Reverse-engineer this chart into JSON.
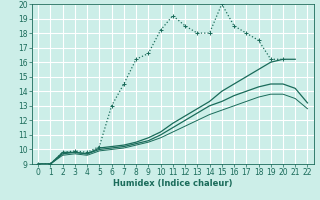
{
  "xlabel": "Humidex (Indice chaleur)",
  "xlim": [
    -0.5,
    22.5
  ],
  "ylim": [
    9,
    20
  ],
  "xticks": [
    0,
    1,
    2,
    3,
    4,
    5,
    6,
    7,
    8,
    9,
    10,
    11,
    12,
    13,
    14,
    15,
    16,
    17,
    18,
    19,
    20,
    21,
    22
  ],
  "yticks": [
    9,
    10,
    11,
    12,
    13,
    14,
    15,
    16,
    17,
    18,
    19,
    20
  ],
  "bg_color": "#cceee8",
  "grid_color": "#ffffff",
  "line_color": "#1a6b5a",
  "lines": [
    {
      "x": [
        0,
        1,
        2,
        3,
        4,
        5,
        6,
        7,
        8,
        9,
        10,
        11,
        12,
        13,
        14,
        15,
        16,
        17,
        18,
        19,
        20
      ],
      "y": [
        9,
        9,
        9.8,
        9.9,
        9.8,
        10.2,
        13.0,
        14.5,
        16.2,
        16.6,
        18.2,
        19.2,
        18.5,
        18.0,
        18.0,
        20.0,
        18.5,
        18.0,
        17.5,
        16.2,
        16.2
      ],
      "marker": "+",
      "linestyle": ":",
      "linewidth": 0.9,
      "markersize": 3.0
    },
    {
      "x": [
        0,
        1,
        2,
        3,
        4,
        5,
        6,
        7,
        8,
        9,
        10,
        11,
        12,
        13,
        14,
        15,
        16,
        17,
        18,
        19,
        20,
        21
      ],
      "y": [
        9,
        9,
        9.8,
        9.8,
        9.7,
        10.1,
        10.2,
        10.3,
        10.5,
        10.8,
        11.2,
        11.8,
        12.3,
        12.8,
        13.3,
        14.0,
        14.5,
        15.0,
        15.5,
        16.0,
        16.2,
        16.2
      ],
      "marker": null,
      "linestyle": "-",
      "linewidth": 0.9,
      "markersize": 0
    },
    {
      "x": [
        0,
        1,
        2,
        3,
        4,
        5,
        6,
        7,
        8,
        9,
        10,
        11,
        12,
        13,
        14,
        15,
        16,
        17,
        18,
        19,
        20,
        21,
        22
      ],
      "y": [
        9,
        9,
        9.7,
        9.8,
        9.7,
        10.0,
        10.1,
        10.2,
        10.4,
        10.6,
        11.0,
        11.5,
        12.0,
        12.5,
        13.0,
        13.3,
        13.7,
        14.0,
        14.3,
        14.5,
        14.5,
        14.2,
        13.2
      ],
      "marker": null,
      "linestyle": "-",
      "linewidth": 0.9,
      "markersize": 0
    },
    {
      "x": [
        0,
        1,
        2,
        3,
        4,
        5,
        6,
        7,
        8,
        9,
        10,
        11,
        12,
        13,
        14,
        15,
        16,
        17,
        18,
        19,
        20,
        21,
        22
      ],
      "y": [
        9,
        9,
        9.6,
        9.7,
        9.6,
        9.9,
        10.0,
        10.1,
        10.3,
        10.5,
        10.8,
        11.2,
        11.6,
        12.0,
        12.4,
        12.7,
        13.0,
        13.3,
        13.6,
        13.8,
        13.8,
        13.5,
        12.8
      ],
      "marker": null,
      "linestyle": "-",
      "linewidth": 0.7,
      "markersize": 0
    }
  ],
  "tick_fontsize": 5.5,
  "xlabel_fontsize": 6.0
}
